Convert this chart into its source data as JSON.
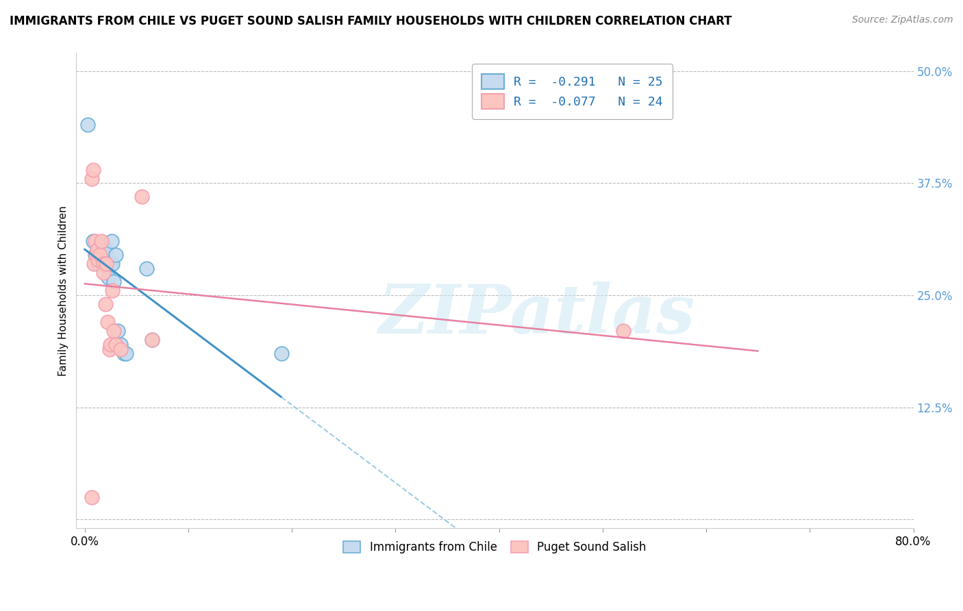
{
  "title": "IMMIGRANTS FROM CHILE VS PUGET SOUND SALISH FAMILY HOUSEHOLDS WITH CHILDREN CORRELATION CHART",
  "source": "Source: ZipAtlas.com",
  "ylabel": "Family Households with Children",
  "watermark": "ZIPatlas",
  "xlim": [
    -0.008,
    0.8
  ],
  "ylim": [
    -0.01,
    0.52
  ],
  "xticks": [
    0.0,
    0.1,
    0.2,
    0.3,
    0.4,
    0.5,
    0.6,
    0.7,
    0.8
  ],
  "xticklabels": [
    "0.0%",
    "",
    "",
    "",
    "",
    "",
    "",
    "",
    "80.0%"
  ],
  "yticks": [
    0.0,
    0.125,
    0.25,
    0.375,
    0.5
  ],
  "yticklabels": [
    "",
    "12.5%",
    "25.0%",
    "37.5%",
    "50.0%"
  ],
  "legend_blue_label": "R =  -0.291   N = 25",
  "legend_pink_label": "R =  -0.077   N = 24",
  "legend_blue_series": "Immigrants from Chile",
  "legend_pink_series": "Puget Sound Salish",
  "blue_color": "#6baed6",
  "pink_color": "#f4a0b0",
  "blue_face": "#c6dbef",
  "pink_face": "#fcc5c0",
  "blue_line_color": "#4292c6",
  "blue_dashed_color": "#9ecae1",
  "pink_line_color": "#e87fa0",
  "blue_scatter_x": [
    0.003,
    0.008,
    0.01,
    0.012,
    0.013,
    0.015,
    0.016,
    0.018,
    0.018,
    0.02,
    0.021,
    0.022,
    0.023,
    0.025,
    0.026,
    0.027,
    0.028,
    0.03,
    0.032,
    0.035,
    0.038,
    0.04,
    0.06,
    0.065,
    0.19
  ],
  "blue_scatter_y": [
    0.44,
    0.31,
    0.295,
    0.3,
    0.285,
    0.295,
    0.3,
    0.305,
    0.295,
    0.3,
    0.285,
    0.28,
    0.27,
    0.285,
    0.31,
    0.285,
    0.265,
    0.295,
    0.21,
    0.195,
    0.185,
    0.185,
    0.28,
    0.2,
    0.185
  ],
  "pink_scatter_x": [
    0.007,
    0.007,
    0.008,
    0.009,
    0.01,
    0.011,
    0.012,
    0.013,
    0.015,
    0.016,
    0.018,
    0.018,
    0.02,
    0.021,
    0.022,
    0.024,
    0.025,
    0.027,
    0.028,
    0.03,
    0.035,
    0.055,
    0.065,
    0.52
  ],
  "pink_scatter_y": [
    0.025,
    0.38,
    0.39,
    0.285,
    0.31,
    0.295,
    0.3,
    0.29,
    0.295,
    0.31,
    0.285,
    0.275,
    0.24,
    0.285,
    0.22,
    0.19,
    0.195,
    0.255,
    0.21,
    0.195,
    0.19,
    0.36,
    0.2,
    0.21
  ],
  "background_color": "#ffffff",
  "grid_color": "#bbbbbb"
}
